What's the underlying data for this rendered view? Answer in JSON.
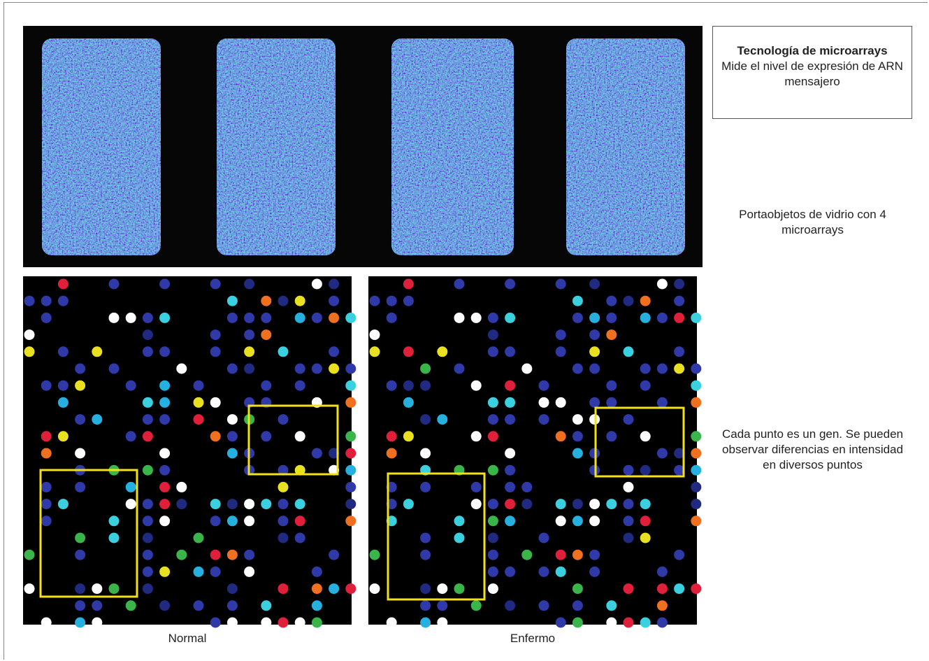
{
  "info_box": {
    "title": "Tecnología de microarrays",
    "body": "Mide el nivel de expresión de ARN mensajero"
  },
  "captions": {
    "slide": "Portaobjetos de vidrio con 4 microarrays",
    "spots": "Cada punto es un gen. Se pueden observar diferencias en intensidad en diversos puntos"
  },
  "panels": {
    "left": "Normal",
    "right": "Enfermo"
  }
}
